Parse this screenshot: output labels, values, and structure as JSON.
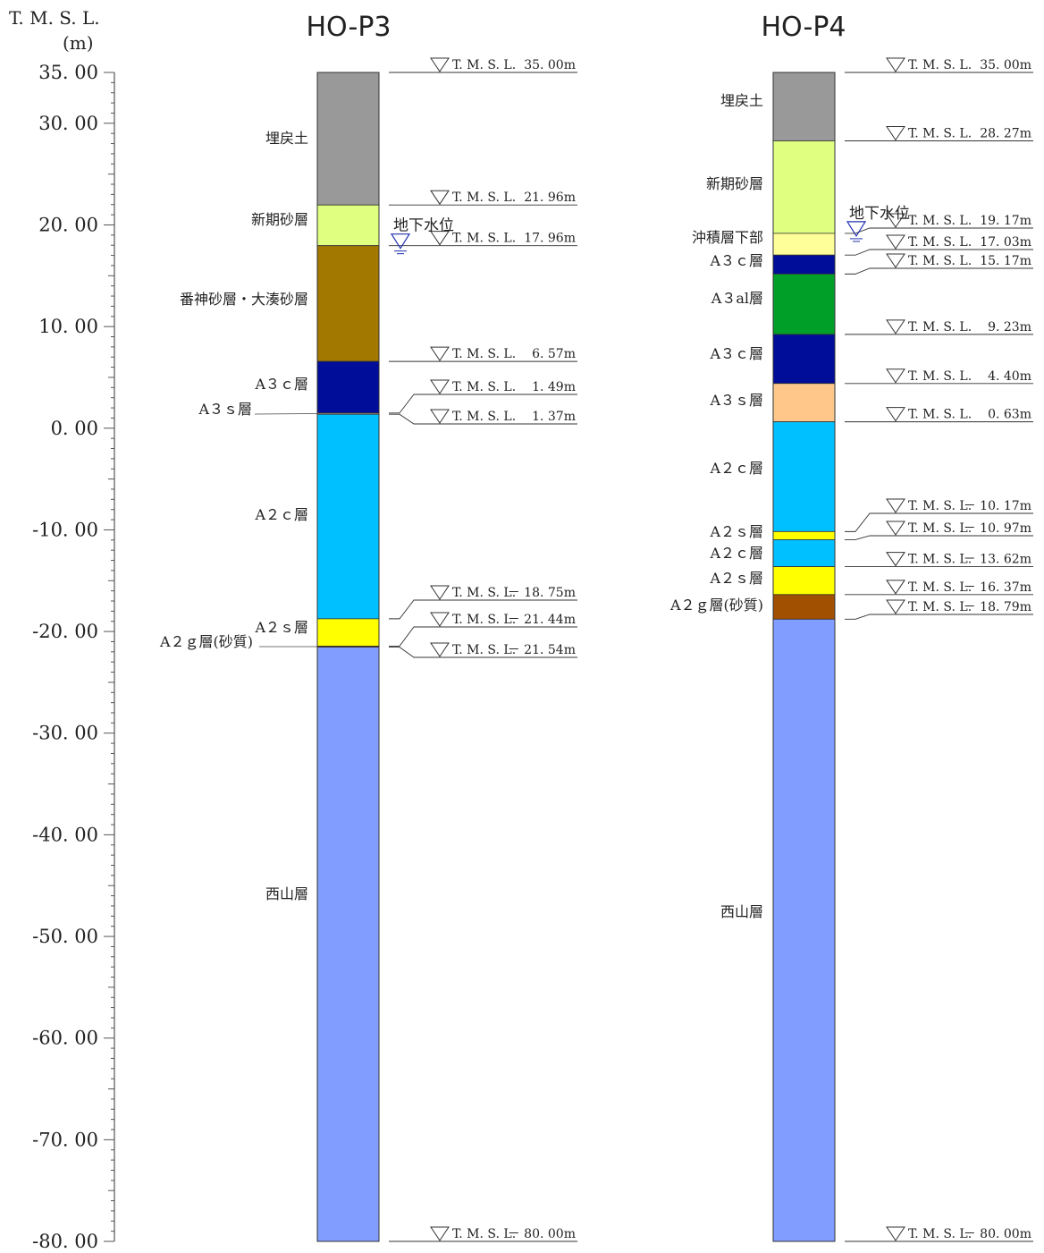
{
  "axis": {
    "title_line1": "T. M. S. L.",
    "title_line2": "(m)",
    "min": -80,
    "max": 35,
    "ticks": [
      {
        "value": 35,
        "label": "35. 00"
      },
      {
        "value": 30,
        "label": "30. 00"
      },
      {
        "value": 20,
        "label": "20. 00"
      },
      {
        "value": 10,
        "label": "10. 00"
      },
      {
        "value": 0,
        "label": "0. 00"
      },
      {
        "value": -10,
        "label": "-10. 00"
      },
      {
        "value": -20,
        "label": "-20. 00"
      },
      {
        "value": -30,
        "label": "-30. 00"
      },
      {
        "value": -40,
        "label": "-40. 00"
      },
      {
        "value": -50,
        "label": "-50. 00"
      },
      {
        "value": -60,
        "label": "-60. 00"
      },
      {
        "value": -70,
        "label": "-70. 00"
      },
      {
        "value": -80,
        "label": "-80. 00"
      }
    ]
  },
  "boreholes": [
    {
      "id": "HO-P3",
      "title": "HO-P3",
      "groundwater": {
        "label": "地下水位",
        "elevation": 17.96
      },
      "layers": [
        {
          "name": "埋戻土",
          "top": 35.0,
          "bottom": 21.96,
          "color": "#999999"
        },
        {
          "name": "新期砂層",
          "top": 21.96,
          "bottom": 17.96,
          "color": "#e0ff80"
        },
        {
          "name": "番神砂層・大湊砂層",
          "top": 17.96,
          "bottom": 6.57,
          "color": "#a27800"
        },
        {
          "name": "A３ｃ層",
          "top": 6.57,
          "bottom": 1.49,
          "color": "#000d99"
        },
        {
          "name": "A３ｓ層",
          "top": 1.49,
          "bottom": 1.37,
          "color": "#ffc88a"
        },
        {
          "name": "A２ｃ層",
          "top": 1.37,
          "bottom": -18.75,
          "color": "#00c0ff"
        },
        {
          "name": "A２ｓ層",
          "top": -18.75,
          "bottom": -21.44,
          "color": "#ffff00"
        },
        {
          "name": "A２ｇ層(砂質)",
          "top": -21.44,
          "bottom": -21.54,
          "color": "#a14f00"
        },
        {
          "name": "西山層",
          "top": -21.54,
          "bottom": -80.0,
          "color": "#809dff"
        }
      ],
      "markers": [
        {
          "label": "T. M. S. L.",
          "value": "35. 00m",
          "elevation": 35.0
        },
        {
          "label": "T. M. S. L.",
          "value": "21. 96m",
          "elevation": 21.96
        },
        {
          "label": "T. M. S. L.",
          "value": "17. 96m",
          "elevation": 17.96
        },
        {
          "label": "T. M. S. L.",
          "value": "6. 57m",
          "elevation": 6.57
        },
        {
          "label": "T. M. S. L.",
          "value": "1. 49m",
          "elevation": 1.49
        },
        {
          "label": "T. M. S. L.",
          "value": "1. 37m",
          "elevation": 1.37
        },
        {
          "label": "T. M. S. L.",
          "value": "－ 18. 75m",
          "elevation": -18.75
        },
        {
          "label": "T. M. S. L.",
          "value": "－ 21. 44m",
          "elevation": -21.44
        },
        {
          "label": "T. M. S. L.",
          "value": "－ 21. 54m",
          "elevation": -21.54
        },
        {
          "label": "T. M. S. L.",
          "value": "－ 80. 00m",
          "elevation": -80.0
        }
      ]
    },
    {
      "id": "HO-P4",
      "title": "HO-P4",
      "groundwater": {
        "label": "地下水位",
        "elevation": 19.17
      },
      "layers": [
        {
          "name": "埋戻土",
          "top": 35.0,
          "bottom": 28.27,
          "color": "#999999"
        },
        {
          "name": "新期砂層",
          "top": 28.27,
          "bottom": 19.17,
          "color": "#e0ff80"
        },
        {
          "name": "沖積層下部",
          "top": 19.17,
          "bottom": 17.03,
          "color": "#ffff99"
        },
        {
          "name": "A３ｃ層",
          "top": 17.03,
          "bottom": 15.17,
          "color": "#000d99"
        },
        {
          "name": "A３al層",
          "top": 15.17,
          "bottom": 9.23,
          "color": "#00a028"
        },
        {
          "name": "A３ｃ層",
          "top": 9.23,
          "bottom": 4.4,
          "color": "#000d99"
        },
        {
          "name": "A３ｓ層",
          "top": 4.4,
          "bottom": 0.63,
          "color": "#ffc88a"
        },
        {
          "name": "A２ｃ層",
          "top": 0.63,
          "bottom": -10.17,
          "color": "#00c0ff"
        },
        {
          "name": "A２ｓ層",
          "top": -10.17,
          "bottom": -10.97,
          "color": "#ffff00"
        },
        {
          "name": "A２ｃ層",
          "top": -10.97,
          "bottom": -13.62,
          "color": "#00c0ff"
        },
        {
          "name": "A２ｓ層",
          "top": -13.62,
          "bottom": -16.37,
          "color": "#ffff00"
        },
        {
          "name": "A２ｇ層(砂質)",
          "top": -16.37,
          "bottom": -18.79,
          "color": "#a14f00"
        },
        {
          "name": "西山層",
          "top": -18.79,
          "bottom": -80.0,
          "color": "#809dff"
        }
      ],
      "markers": [
        {
          "label": "T. M. S. L.",
          "value": "35. 00m",
          "elevation": 35.0
        },
        {
          "label": "T. M. S. L.",
          "value": "28. 27m",
          "elevation": 28.27
        },
        {
          "label": "T. M. S. L.",
          "value": "19. 17m",
          "elevation": 19.17
        },
        {
          "label": "T. M. S. L.",
          "value": "17. 03m",
          "elevation": 17.03
        },
        {
          "label": "T. M. S. L.",
          "value": "15. 17m",
          "elevation": 15.17
        },
        {
          "label": "T. M. S. L.",
          "value": "9. 23m",
          "elevation": 9.23
        },
        {
          "label": "T. M. S. L.",
          "value": "4. 40m",
          "elevation": 4.4
        },
        {
          "label": "T. M. S. L.",
          "value": "0. 63m",
          "elevation": 0.63
        },
        {
          "label": "T. M. S. L.",
          "value": "－ 10. 17m",
          "elevation": -10.17
        },
        {
          "label": "T. M. S. L.",
          "value": "－ 10. 97m",
          "elevation": -10.97
        },
        {
          "label": "T. M. S. L.",
          "value": "－ 13. 62m",
          "elevation": -13.62
        },
        {
          "label": "T. M. S. L.",
          "value": "－ 16. 37m",
          "elevation": -16.37
        },
        {
          "label": "T. M. S. L.",
          "value": "－ 18. 79m",
          "elevation": -18.79
        },
        {
          "label": "T. M. S. L.",
          "value": "－ 80. 00m",
          "elevation": -80.0
        }
      ]
    }
  ]
}
